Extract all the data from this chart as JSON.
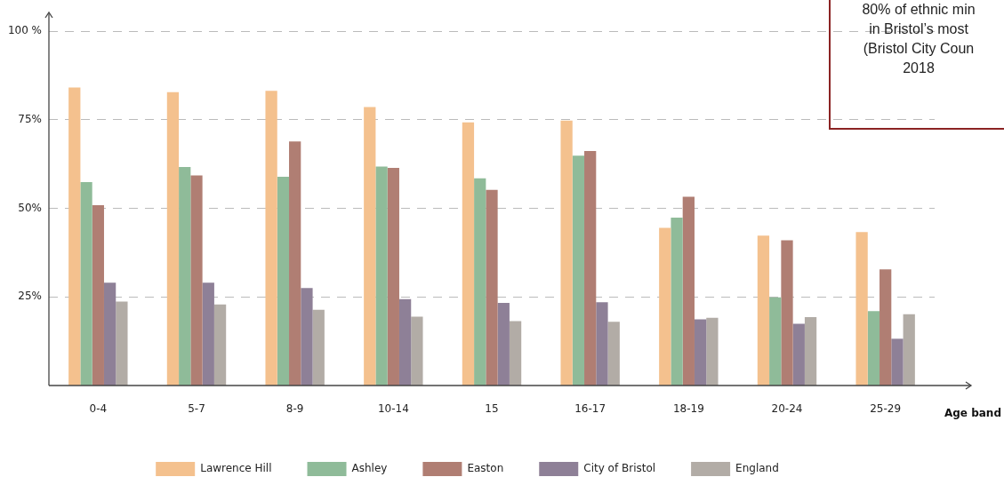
{
  "chart_data": {
    "type": "bar",
    "xlabel": "Age band",
    "categories": [
      "0-4",
      "5-7",
      "8-9",
      "10-14",
      "15",
      "16-17",
      "18-19",
      "20-24",
      "25-29"
    ],
    "series": [
      {
        "name": "Lawrence Hill",
        "color": "#f4c18e",
        "values": [
          84.1,
          82.8,
          83.2,
          78.6,
          74.3,
          74.8,
          44.5,
          42.3,
          43.3
        ]
      },
      {
        "name": "Ashley",
        "color": "#8fbb99",
        "values": [
          57.4,
          61.7,
          58.9,
          61.8,
          58.5,
          64.9,
          47.4,
          24.9,
          21.0
        ]
      },
      {
        "name": "Easton",
        "color": "#b07e73",
        "values": [
          50.9,
          59.3,
          68.9,
          61.4,
          55.2,
          66.2,
          53.3,
          41.0,
          32.8
        ]
      },
      {
        "name": "City of Bristol",
        "color": "#8e8097",
        "values": [
          29.0,
          29.0,
          27.5,
          24.4,
          23.3,
          23.5,
          18.7,
          17.4,
          13.2
        ]
      },
      {
        "name": "England",
        "color": "#b2aca6",
        "values": [
          23.7,
          22.9,
          21.4,
          19.4,
          18.2,
          18.0,
          19.1,
          19.3,
          20.1
        ]
      }
    ],
    "ylim": [
      0,
      105
    ],
    "yticks": [
      {
        "value": 25,
        "label": "25%"
      },
      {
        "value": 50,
        "label": "50%"
      },
      {
        "value": 75,
        "label": "75%"
      },
      {
        "value": 100,
        "label": "100 %"
      }
    ],
    "grid": "y",
    "legend": "bottom",
    "annotations": [
      "80% of ethnic min\nin Bristol’s most\n(Bristol City Coun\n2018"
    ]
  }
}
